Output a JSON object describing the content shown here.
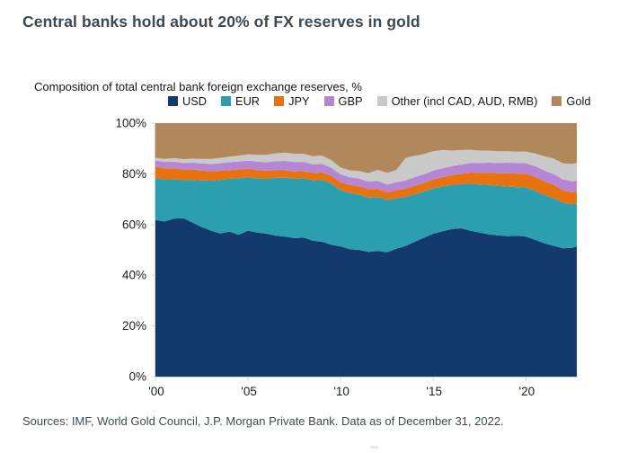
{
  "page": {
    "title": "Central banks hold about 20% of FX reserves in gold",
    "source": "Sources: IMF, World Gold Council, J.P. Morgan Private Bank. Data as of December 31, 2022."
  },
  "chart_data": {
    "type": "area",
    "stacked": true,
    "title": "Composition of total central bank foreign exchange reserves, %",
    "xlabel": "",
    "ylabel": "",
    "xlim": [
      2000,
      2022.75
    ],
    "ylim": [
      0,
      100
    ],
    "grid": false,
    "legend_position": "top",
    "x_tick_values": [
      2000,
      2005,
      2010,
      2015,
      2020
    ],
    "x_tick_labels": [
      "'00",
      "'05",
      "'10",
      "'15",
      "'20"
    ],
    "y_tick_values": [
      0,
      20,
      40,
      60,
      80,
      100
    ],
    "y_tick_labels": [
      "0%",
      "20%",
      "40%",
      "60%",
      "80%",
      "100%"
    ],
    "x": [
      2000,
      2000.5,
      2001,
      2001.5,
      2002,
      2002.5,
      2003,
      2003.5,
      2004,
      2004.5,
      2005,
      2005.5,
      2006,
      2006.5,
      2007,
      2007.5,
      2008,
      2008.5,
      2009,
      2009.5,
      2010,
      2010.5,
      2011,
      2011.5,
      2012,
      2012.5,
      2013,
      2013.5,
      2014,
      2014.5,
      2015,
      2015.5,
      2016,
      2016.5,
      2017,
      2017.5,
      2018,
      2018.5,
      2019,
      2019.5,
      2020,
      2020.5,
      2021,
      2021.5,
      2022,
      2022.5,
      2022.75
    ],
    "series": [
      {
        "name": "USD",
        "color": "#123a6d",
        "values": [
          61.8,
          61.2,
          62.3,
          62.5,
          60.8,
          59.0,
          57.6,
          56.5,
          57.2,
          56.0,
          57.6,
          56.8,
          56.4,
          55.6,
          55.2,
          54.6,
          54.9,
          53.6,
          53.2,
          52.0,
          51.4,
          50.3,
          50.0,
          49.2,
          49.6,
          49.0,
          50.4,
          51.5,
          53.2,
          54.8,
          56.4,
          57.3,
          58.2,
          58.5,
          57.6,
          56.8,
          56.1,
          55.7,
          55.4,
          55.6,
          55.2,
          54.0,
          52.6,
          51.6,
          50.6,
          50.8,
          51.4
        ]
      },
      {
        "name": "EUR",
        "color": "#2b9fb0",
        "values": [
          16.5,
          16.6,
          15.6,
          15.0,
          16.8,
          18.4,
          19.7,
          21.1,
          20.8,
          22.3,
          21.0,
          21.4,
          21.6,
          22.8,
          23.3,
          23.4,
          23.3,
          23.8,
          24.4,
          24.2,
          22.2,
          22.1,
          21.8,
          21.4,
          21.3,
          20.7,
          19.9,
          19.3,
          18.7,
          18.2,
          17.9,
          17.7,
          17.4,
          17.4,
          18.5,
          19.0,
          19.5,
          19.5,
          19.6,
          19.2,
          19.4,
          19.3,
          19.0,
          18.8,
          18.0,
          17.2,
          16.8
        ]
      },
      {
        "name": "JPY",
        "color": "#e7720e",
        "values": [
          4.5,
          4.4,
          4.3,
          4.2,
          4.1,
          3.9,
          3.7,
          3.6,
          3.5,
          3.4,
          3.4,
          3.3,
          3.2,
          3.0,
          2.9,
          2.9,
          2.9,
          2.9,
          3.0,
          3.0,
          3.1,
          3.2,
          3.3,
          3.3,
          3.2,
          3.0,
          3.2,
          3.3,
          3.4,
          3.4,
          3.5,
          3.7,
          3.9,
          4.1,
          4.4,
          4.6,
          4.8,
          5.0,
          5.2,
          5.3,
          5.4,
          5.5,
          5.5,
          5.3,
          4.9,
          4.8,
          4.8
        ]
      },
      {
        "name": "GBP",
        "color": "#b586d4",
        "values": [
          2.5,
          2.5,
          2.6,
          2.6,
          2.7,
          2.8,
          2.9,
          3.0,
          3.1,
          3.2,
          3.2,
          3.3,
          3.4,
          3.6,
          3.7,
          3.7,
          3.6,
          3.5,
          3.3,
          3.2,
          3.1,
          3.0,
          3.0,
          3.0,
          3.1,
          3.1,
          3.2,
          3.3,
          3.4,
          3.4,
          3.5,
          3.5,
          3.5,
          3.6,
          3.8,
          3.9,
          4.0,
          4.1,
          4.2,
          4.2,
          4.2,
          4.2,
          4.2,
          4.2,
          4.3,
          4.3,
          4.3
        ]
      },
      {
        "name": "Other (incl CAD, AUD, RMB)",
        "color": "#c9c9c9",
        "values": [
          1.0,
          1.2,
          1.4,
          1.5,
          1.6,
          1.8,
          2.0,
          2.1,
          2.2,
          2.3,
          2.5,
          2.7,
          2.9,
          3.1,
          3.3,
          3.3,
          3.2,
          3.2,
          3.3,
          3.0,
          2.7,
          2.8,
          3.0,
          3.4,
          4.4,
          4.6,
          4.8,
          8.8,
          8.4,
          8.0,
          7.6,
          7.2,
          6.2,
          5.8,
          5.2,
          4.9,
          4.8,
          4.6,
          4.5,
          4.5,
          4.6,
          5.0,
          5.6,
          6.1,
          6.4,
          6.8,
          7.0
        ]
      },
      {
        "name": "Gold",
        "color": "#b1875c",
        "values": [
          13.7,
          14.1,
          13.8,
          14.2,
          14.0,
          14.1,
          14.1,
          13.7,
          13.2,
          12.8,
          12.3,
          12.5,
          12.5,
          11.9,
          11.6,
          12.1,
          12.1,
          13.0,
          12.8,
          14.6,
          17.5,
          18.6,
          18.9,
          19.7,
          18.4,
          19.6,
          18.5,
          13.8,
          12.9,
          12.2,
          11.1,
          10.6,
          10.8,
          10.6,
          10.5,
          10.8,
          10.8,
          11.1,
          11.1,
          11.2,
          11.2,
          12.0,
          13.1,
          14.0,
          15.8,
          16.1,
          15.7
        ]
      }
    ]
  }
}
